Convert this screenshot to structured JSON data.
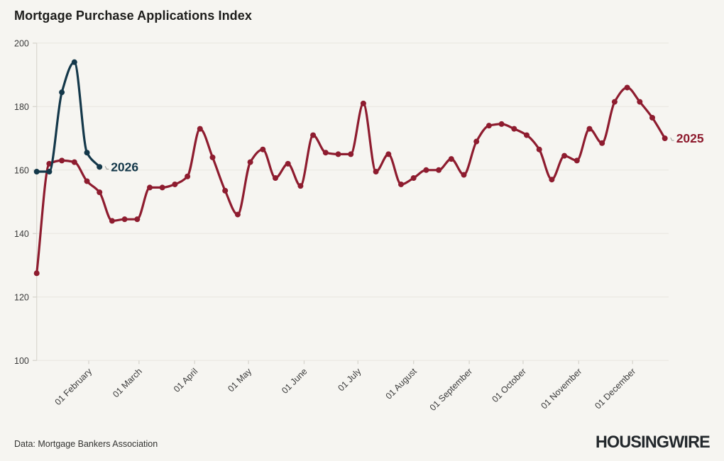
{
  "header": {
    "title": "Mortgage Purchase Applications Index"
  },
  "chart_data": {
    "type": "line",
    "title": "Mortgage Purchase Applications Index",
    "x_unit": "weekly points, first week of January through year end",
    "x_tick_labels": [
      "01 February",
      "01 March",
      "01 April",
      "01 May",
      "01 June",
      "01 July",
      "01 August",
      "01 September",
      "01 October",
      "01 November",
      "01 December"
    ],
    "y_ticks": [
      100,
      120,
      140,
      160,
      180,
      200
    ],
    "ylim": [
      100,
      200
    ],
    "grid": "horizontal",
    "legend_position": "end-of-line labels",
    "series": [
      {
        "name": "2025",
        "color": "#8e1c2f",
        "values": [
          127.5,
          162,
          163,
          162.5,
          156.5,
          153,
          144,
          144.5,
          144.5,
          154.5,
          154.5,
          155.5,
          158,
          173,
          164,
          153.5,
          146,
          162.5,
          166.5,
          157.5,
          162,
          155,
          171,
          165.5,
          165,
          165,
          181,
          159.5,
          165,
          155.5,
          157.5,
          160,
          160,
          163.5,
          158.5,
          169,
          174,
          174.5,
          173,
          171,
          166.5,
          157,
          164.5,
          163,
          173,
          168.5,
          181.5,
          186,
          181.5,
          176.5,
          170
        ]
      },
      {
        "name": "2026",
        "color": "#14384a",
        "values": [
          159.5,
          159.5,
          184.5,
          194,
          165.5,
          161
        ]
      }
    ],
    "end_labels": [
      {
        "series": "2026",
        "text": "2026"
      },
      {
        "series": "2025",
        "text": "2025"
      }
    ]
  },
  "footer": {
    "source": "Data: Mortgage Bankers Association",
    "brand": "HOUSINGWIRE"
  }
}
